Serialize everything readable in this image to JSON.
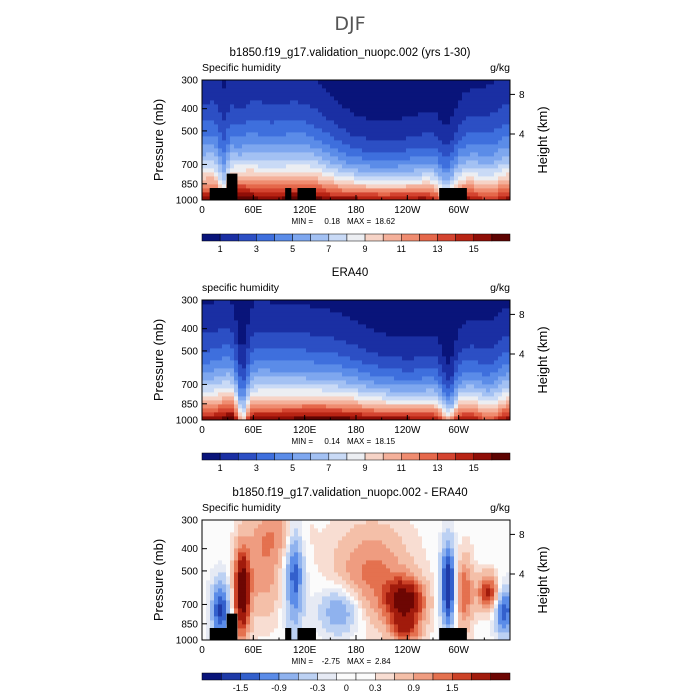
{
  "figure": {
    "title": "DJF"
  },
  "colors": {
    "frame": "#000000",
    "background": "#ffffff",
    "mask": "#000000"
  },
  "chart_data": [
    {
      "type": "heatmap",
      "title": "b1850.f19_g17.validation_nuopc.002 (yrs 1-30)",
      "left_label": "Specific humidity",
      "right_label": "g/kg",
      "ylabel": "Pressure (mb)",
      "ylabel_right": "Height (km)",
      "x_ticks": [
        "0",
        "60E",
        "120E",
        "180",
        "120W",
        "60W"
      ],
      "y_ticks": [
        "300",
        "400",
        "500",
        "700",
        "850",
        "1000"
      ],
      "y_right_ticks": [
        "8",
        "4"
      ],
      "stats": {
        "min_label": "MIN =",
        "min_value": "0.18",
        "max_label": "MAX =",
        "max_value": "18.62"
      },
      "colorbar": {
        "labels": [
          "1",
          "3",
          "5",
          "7",
          "9",
          "11",
          "13",
          "15"
        ],
        "colors": [
          "#09147a",
          "#1a2fa3",
          "#2c4fc4",
          "#3e6fdd",
          "#5b8ce8",
          "#7ea7ef",
          "#a3c1f3",
          "#c9daf6",
          "#eceef2",
          "#f6d3c6",
          "#f4b09a",
          "#ef8c70",
          "#e5684b",
          "#d44430",
          "#b82414",
          "#8f0e07",
          "#5e0402"
        ]
      },
      "ranges": {
        "x": [
          0,
          360
        ],
        "pressure": [
          1000,
          300
        ],
        "value": [
          0,
          18.62
        ]
      }
    },
    {
      "type": "heatmap",
      "title": "ERA40",
      "left_label": "specific humidity",
      "right_label": "g/kg",
      "ylabel": "Pressure (mb)",
      "ylabel_right": "Height (km)",
      "x_ticks": [
        "0",
        "60E",
        "120E",
        "180",
        "120W",
        "60W"
      ],
      "y_ticks": [
        "300",
        "400",
        "500",
        "700",
        "850",
        "1000"
      ],
      "y_right_ticks": [
        "8",
        "4"
      ],
      "stats": {
        "min_label": "MIN =",
        "min_value": "0.14",
        "max_label": "MAX =",
        "max_value": "18.15"
      },
      "colorbar": {
        "labels": [
          "1",
          "3",
          "5",
          "7",
          "9",
          "11",
          "13",
          "15"
        ],
        "colors": [
          "#09147a",
          "#1a2fa3",
          "#2c4fc4",
          "#3e6fdd",
          "#5b8ce8",
          "#7ea7ef",
          "#a3c1f3",
          "#c9daf6",
          "#eceef2",
          "#f6d3c6",
          "#f4b09a",
          "#ef8c70",
          "#e5684b",
          "#d44430",
          "#b82414",
          "#8f0e07",
          "#5e0402"
        ]
      },
      "ranges": {
        "x": [
          0,
          360
        ],
        "pressure": [
          1000,
          300
        ],
        "value": [
          0,
          18.15
        ]
      }
    },
    {
      "type": "heatmap",
      "title": "b1850.f19_g17.validation_nuopc.002 - ERA40",
      "left_label": "Specific humidity",
      "right_label": "g/kg",
      "ylabel": "Pressure (mb)",
      "ylabel_right": "Height (km)",
      "x_ticks": [
        "0",
        "60E",
        "120E",
        "180",
        "120W",
        "60W"
      ],
      "y_ticks": [
        "300",
        "400",
        "500",
        "700",
        "850",
        "1000"
      ],
      "y_right_ticks": [
        "8",
        "4"
      ],
      "stats": {
        "min_label": "MIN =",
        "min_value": "-2.75",
        "max_label": "MAX =",
        "max_value": "2.84"
      },
      "colorbar": {
        "labels": [
          "-1.5",
          "-0.9",
          "-0.3",
          "0",
          "0.3",
          "0.9",
          "1.5"
        ],
        "colors": [
          "#09147a",
          "#1e3aa8",
          "#3360cc",
          "#5b8ce8",
          "#8fb2ee",
          "#bcd1f3",
          "#e6eaf4",
          "#fbfbfb",
          "#fbfbfb",
          "#f8ddd2",
          "#f4bfa8",
          "#ef9c80",
          "#e4714f",
          "#cc4227",
          "#a11b0c",
          "#6d0603"
        ]
      },
      "ranges": {
        "x": [
          0,
          360
        ],
        "pressure": [
          1000,
          300
        ],
        "value": [
          -2.75,
          2.84
        ]
      }
    }
  ]
}
